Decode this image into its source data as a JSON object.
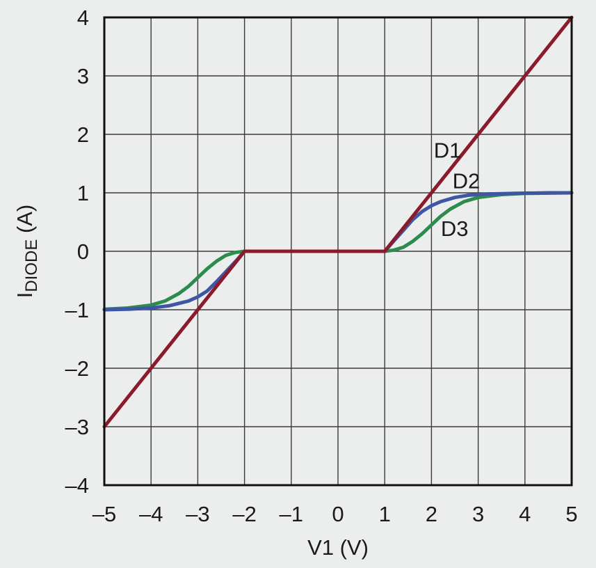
{
  "chart_data": {
    "type": "line",
    "title": "",
    "xlabel": "V1 (V)",
    "ylabel_main": "I",
    "ylabel_sub": "DIODE",
    "ylabel_unit": " (A)",
    "xlim": [
      -5,
      5
    ],
    "ylim": [
      -4,
      4
    ],
    "grid": true,
    "legend": "none",
    "x_ticks": [
      -5,
      -4,
      -3,
      -2,
      -1,
      0,
      1,
      2,
      3,
      4,
      5
    ],
    "y_ticks": [
      -4,
      -3,
      -2,
      -1,
      0,
      1,
      2,
      3,
      4
    ],
    "x_tick_labels": [
      "–5",
      "–4",
      "–3",
      "–2",
      "–1",
      "0",
      "1",
      "2",
      "3",
      "4",
      "5"
    ],
    "y_tick_labels": [
      "–4",
      "–3",
      "–2",
      "–1",
      "0",
      "1",
      "2",
      "3",
      "4"
    ],
    "series": [
      {
        "name": "D3",
        "color": "#2e8b4e",
        "points": [
          [
            -5,
            -0.99
          ],
          [
            -4.5,
            -0.97
          ],
          [
            -4,
            -0.92
          ],
          [
            -3.7,
            -0.85
          ],
          [
            -3.4,
            -0.72
          ],
          [
            -3.2,
            -0.6
          ],
          [
            -3,
            -0.45
          ],
          [
            -2.8,
            -0.3
          ],
          [
            -2.6,
            -0.17
          ],
          [
            -2.4,
            -0.07
          ],
          [
            -2.2,
            -0.02
          ],
          [
            -2,
            0
          ],
          [
            1,
            0
          ],
          [
            1.2,
            0.02
          ],
          [
            1.4,
            0.07
          ],
          [
            1.6,
            0.17
          ],
          [
            1.8,
            0.3
          ],
          [
            2,
            0.45
          ],
          [
            2.2,
            0.6
          ],
          [
            2.4,
            0.72
          ],
          [
            2.7,
            0.85
          ],
          [
            3,
            0.92
          ],
          [
            3.5,
            0.97
          ],
          [
            4,
            0.99
          ],
          [
            5,
            1
          ]
        ]
      },
      {
        "name": "D2",
        "color": "#3e56a4",
        "points": [
          [
            -5,
            -1
          ],
          [
            -4.5,
            -0.99
          ],
          [
            -4,
            -0.97
          ],
          [
            -3.6,
            -0.93
          ],
          [
            -3.2,
            -0.85
          ],
          [
            -3,
            -0.78
          ],
          [
            -2.8,
            -0.68
          ],
          [
            -2.6,
            -0.52
          ],
          [
            -2.4,
            -0.35
          ],
          [
            -2.2,
            -0.18
          ],
          [
            -2,
            0
          ],
          [
            1,
            0
          ],
          [
            1.2,
            0.18
          ],
          [
            1.4,
            0.36
          ],
          [
            1.6,
            0.54
          ],
          [
            1.8,
            0.68
          ],
          [
            2,
            0.78
          ],
          [
            2.2,
            0.85
          ],
          [
            2.5,
            0.92
          ],
          [
            2.8,
            0.96
          ],
          [
            3.2,
            0.98
          ],
          [
            3.8,
            0.99
          ],
          [
            4.5,
            1
          ],
          [
            5,
            1
          ]
        ]
      },
      {
        "name": "D1",
        "color": "#8b1a2b",
        "points": [
          [
            -5,
            -3
          ],
          [
            -2,
            0
          ],
          [
            1,
            0
          ],
          [
            5,
            4
          ]
        ]
      }
    ],
    "annotations": [
      {
        "text": "D1",
        "x": 2.05,
        "y": 1.6
      },
      {
        "text": "D2",
        "x": 2.45,
        "y": 1.08
      },
      {
        "text": "D3",
        "x": 2.2,
        "y": 0.26
      }
    ]
  }
}
